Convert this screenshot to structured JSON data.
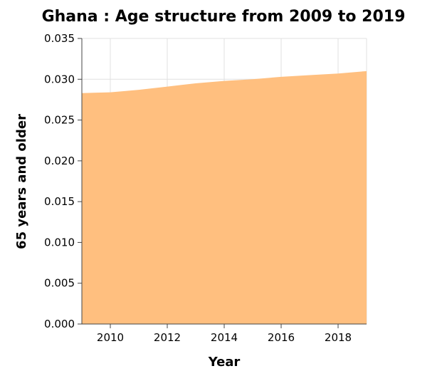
{
  "chart_data": {
    "type": "area",
    "title": "Ghana : Age structure from 2009 to 2019",
    "xlabel": "Year",
    "ylabel": "65 years and older",
    "xlim": [
      2009,
      2019
    ],
    "ylim": [
      0,
      0.035
    ],
    "x_ticks": [
      2010,
      2012,
      2014,
      2016,
      2018
    ],
    "y_ticks": [
      "0.000",
      "0.005",
      "0.010",
      "0.015",
      "0.020",
      "0.025",
      "0.030",
      "0.035"
    ],
    "grid": true,
    "fill_color": "#ffbf7f",
    "series": [
      {
        "x": [
          2009,
          2010,
          2011,
          2012,
          2013,
          2014,
          2015,
          2016,
          2017,
          2018,
          2019
        ],
        "values": [
          0.0283,
          0.0284,
          0.0287,
          0.0291,
          0.0295,
          0.0298,
          0.03,
          0.0303,
          0.0305,
          0.0307,
          0.031
        ]
      }
    ]
  }
}
